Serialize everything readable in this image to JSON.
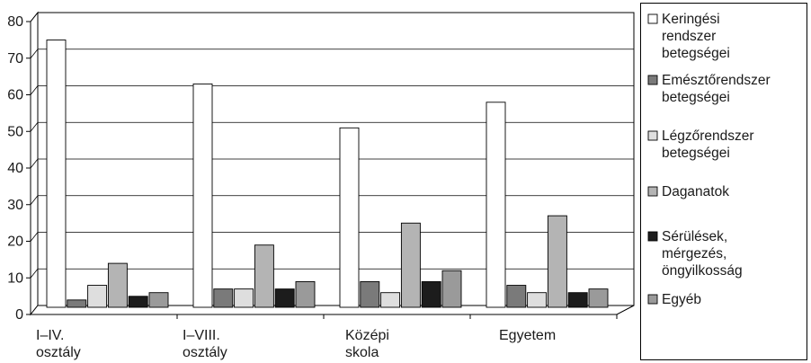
{
  "chart_data": {
    "type": "bar",
    "categories": [
      [
        "I–IV.",
        "osztály"
      ],
      [
        "I–VIII.",
        "osztály"
      ],
      [
        "Középi",
        "skola"
      ],
      [
        "Egyetem"
      ]
    ],
    "series": [
      {
        "name": [
          "Keringési",
          "rendszer",
          "betegségei"
        ],
        "color": "#ffffff",
        "values": [
          73,
          61,
          49,
          56
        ]
      },
      {
        "name": [
          "Emésztőrendszer",
          "betegségei"
        ],
        "color": "#7a7a7a",
        "values": [
          2,
          5,
          7,
          6
        ]
      },
      {
        "name": [
          "Légzőrendszer",
          "betegségei"
        ],
        "color": "#dedede",
        "values": [
          6,
          5,
          4,
          4
        ]
      },
      {
        "name": [
          "Daganatok"
        ],
        "color": "#b4b4b4",
        "values": [
          12,
          17,
          23,
          25
        ]
      },
      {
        "name": [
          "Sérülések,",
          "mérgezés,",
          "öngyilkosság"
        ],
        "color": "#1c1c1c",
        "values": [
          3,
          5,
          7,
          4
        ]
      },
      {
        "name": [
          "Egyéb"
        ],
        "color": "#9a9a9a",
        "values": [
          4,
          7,
          10,
          5
        ]
      }
    ],
    "yticks": [
      0,
      10,
      20,
      30,
      40,
      50,
      60,
      70,
      80
    ],
    "ylim": [
      0,
      80
    ],
    "grid": true,
    "legend_position": "right"
  }
}
